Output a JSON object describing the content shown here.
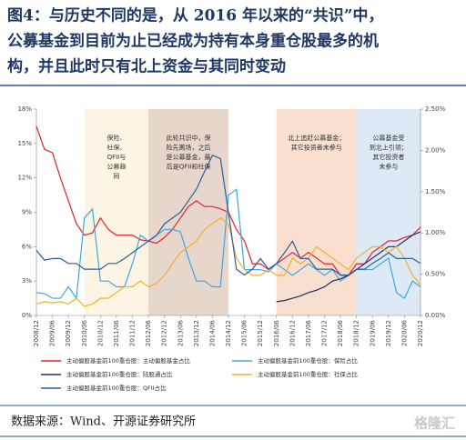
{
  "title_lines": [
    "图4：与历史不同的是，从 2016 年以来的“共识”中，",
    "公募基金到目前为止已经成为持有本身重仓股最多的机",
    "构，并且此时只有北上资金与其同时变动"
  ],
  "source": "数据来源：Wind、开源证券研究所",
  "watermark": "格隆汇",
  "chart_data": {
    "type": "line",
    "categories": [
      "2008/12",
      null,
      "2009/06",
      null,
      "2009/12",
      null,
      "2010/06",
      null,
      "2010/12",
      null,
      "2011/06",
      null,
      "2011/12",
      null,
      "2012/06",
      null,
      "2012/12",
      null,
      "2013/06",
      null,
      "2013/12",
      null,
      "2014/06",
      null,
      "2014/12",
      null,
      "2015/06",
      null,
      "2015/12",
      null,
      "2016/06",
      null,
      "2016/12",
      null,
      "2017/06",
      null,
      "2017/12",
      null,
      "2018/06",
      null,
      "2018/12",
      null,
      "2019/06",
      null,
      "2019/12",
      null,
      "2020/06",
      null,
      "2020/12"
    ],
    "ylim": [
      0,
      18
    ],
    "yticks": [
      {
        "value": 0,
        "label": "0%"
      },
      {
        "value": 3,
        "label": "3%"
      },
      {
        "value": 6,
        "label": "6%"
      },
      {
        "value": 9,
        "label": "9%"
      },
      {
        "value": 12,
        "label": "12%"
      },
      {
        "value": 15,
        "label": "15%"
      },
      {
        "value": 18,
        "label": "18%"
      }
    ],
    "y2lim": [
      0,
      2.5
    ],
    "y2ticks": [
      {
        "value": 0,
        "label": "0.00%"
      },
      {
        "value": 0.5,
        "label": "0.50%"
      },
      {
        "value": 1,
        "label": "1.00%"
      },
      {
        "value": 1.5,
        "label": "1.50%"
      },
      {
        "value": 2,
        "label": "2.00%"
      },
      {
        "value": 2.5,
        "label": "2.50%"
      }
    ],
    "regions": [
      {
        "start": "2010/06",
        "end": "2012/06",
        "color": "#fdf5e4",
        "label": [
          "保险、",
          "社保、",
          "QFII与",
          "公募趋",
          "同"
        ]
      },
      {
        "start": "2012/06",
        "end": "2014/12",
        "color": "#e6d6cb",
        "label": [
          "此轮共识中，保",
          "险先离场，之后",
          "是公募基金，最",
          "后是QFII和社保"
        ]
      },
      {
        "start": "2016/06",
        "end": "2018/12",
        "color": "#f8dfd0",
        "label": [
          "北上追赶公募基金；",
          "其它投资者未参与"
        ]
      },
      {
        "start": "2018/12",
        "end": "2020/12",
        "color": "#dde9f5",
        "label": [
          "公募基金受",
          "到北上引领；",
          "其它投资者",
          "未参与"
        ]
      }
    ],
    "series": [
      {
        "name": "主动偏股基金前100重仓股：主动偏股基金占比",
        "color": "#e8202a",
        "values": [
          16.5,
          14.5,
          14.2,
          12,
          10,
          8,
          7,
          7.2,
          8.5,
          7.5,
          7,
          7,
          7,
          6.6,
          6.5,
          6.3,
          6.8,
          7.5,
          8.5,
          9.5,
          10,
          9.5,
          9.5,
          9.3,
          9,
          7.5,
          6.5,
          4.5,
          4.5,
          4,
          4.5,
          5,
          5.5,
          5,
          5.5,
          5,
          4.5,
          4.5,
          3.5,
          3.5,
          4.5,
          4.5,
          5.5,
          6,
          6.5,
          6.5,
          6.8,
          7,
          7.7
        ]
      },
      {
        "name": "主动偏股基金前100重仓股：保险占比",
        "color": "#3fa7dc",
        "values": [
          2,
          1.9,
          1.5,
          1.5,
          2.5,
          1.5,
          8.5,
          9.3,
          3,
          3,
          2.5,
          2.5,
          4.5,
          7,
          6.5,
          7,
          7.5,
          7.5,
          7.3,
          5,
          3,
          3,
          2.5,
          2.5,
          10.5,
          11,
          4,
          4,
          4,
          3.8,
          4.5,
          4,
          3.5,
          4,
          4.5,
          4,
          3.5,
          4,
          3,
          3.5,
          4,
          4,
          4,
          4.5,
          5,
          2,
          1.5,
          3,
          2.5
        ]
      },
      {
        "name": "主动偏股基金前100重仓股：陆股通占比",
        "color": "#1f2f6b",
        "values": [
          null,
          null,
          null,
          null,
          null,
          null,
          null,
          null,
          null,
          null,
          null,
          null,
          null,
          null,
          null,
          null,
          null,
          null,
          null,
          null,
          null,
          null,
          null,
          null,
          null,
          null,
          null,
          null,
          null,
          null,
          1.2,
          1.3,
          1.5,
          1.7,
          2,
          2.2,
          2.5,
          3,
          3.2,
          3.5,
          4,
          4.5,
          5,
          5.5,
          6,
          6,
          6.5,
          7,
          7.3
        ]
      },
      {
        "name": "主动偏股基金前100重仓股：社保占比",
        "color": "#f4b12a",
        "values": [
          1,
          1.2,
          1.1,
          1.2,
          1,
          1.5,
          0.8,
          1,
          1.5,
          1.5,
          2,
          2.5,
          2.5,
          3,
          2.5,
          2.8,
          3.5,
          4.5,
          5.5,
          6,
          6.5,
          7.5,
          8,
          8.5,
          8,
          5,
          4,
          3.5,
          3.5,
          4,
          3.5,
          3.5,
          5,
          4.5,
          5,
          6,
          5.5,
          5,
          4.5,
          4,
          5,
          5.5,
          6,
          6,
          5.5,
          6,
          5,
          3.5,
          2.7
        ]
      },
      {
        "name": "主动偏股基金前100重仓股：QFII占比",
        "color": "#2c5f9e",
        "axis": "y2",
        "values": [
          0.79,
          0.67,
          0.69,
          0.69,
          0.63,
          0.63,
          0.56,
          0.56,
          0.56,
          0.63,
          0.63,
          0.69,
          0.76,
          0.83,
          0.9,
          0.97,
          1.11,
          1.18,
          1.25,
          1.39,
          1.53,
          1.74,
          1.94,
          1.9,
          1.25,
          0.56,
          0.49,
          0.56,
          0.69,
          0.56,
          0.63,
          0.76,
          0.9,
          0.69,
          0.69,
          0.56,
          0.56,
          0.56,
          0.49,
          0.49,
          0.56,
          0.56,
          0.63,
          0.69,
          0.76,
          0.69,
          0.69,
          0.69,
          0.63
        ]
      }
    ]
  }
}
